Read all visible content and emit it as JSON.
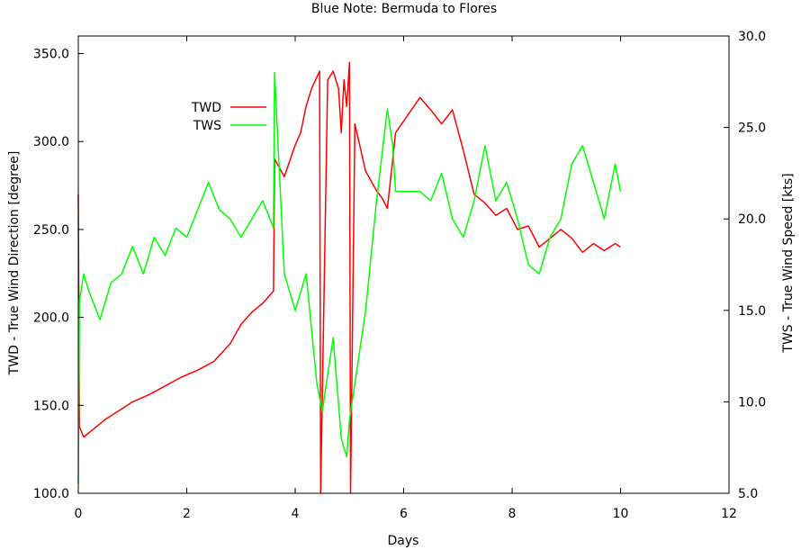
{
  "chart_data": {
    "type": "line",
    "title": "Blue Note: Bermuda to Flores",
    "xlabel": "Days",
    "ylabel_left": "TWD - True Wind Direction [degree]",
    "ylabel_right": "TWS - True Wind Speed [kts]",
    "xlim": [
      0,
      12
    ],
    "ylim_left": [
      100,
      360
    ],
    "ylim_right": [
      5,
      30
    ],
    "x_ticks": [
      "0",
      "2",
      "4",
      "6",
      "8",
      "10",
      "12"
    ],
    "y_ticks_left": [
      "100.0",
      "150.0",
      "200.0",
      "250.0",
      "300.0",
      "350.0"
    ],
    "y_ticks_right": [
      "5.0",
      "10.0",
      "15.0",
      "20.0",
      "25.0",
      "30.0"
    ],
    "legend_position": "top-left",
    "grid": false,
    "series": [
      {
        "name": "TWD",
        "axis": "left",
        "color": "#ff0000",
        "x": [
          0,
          0.02,
          0.1,
          0.3,
          0.5,
          0.8,
          1.0,
          1.3,
          1.6,
          1.9,
          2.2,
          2.5,
          2.8,
          3.0,
          3.2,
          3.4,
          3.6,
          3.62,
          3.8,
          4.0,
          4.1,
          4.2,
          4.3,
          4.45,
          4.47,
          4.6,
          4.7,
          4.8,
          4.85,
          4.9,
          4.95,
          5.0,
          5.02,
          5.1,
          5.3,
          5.5,
          5.6,
          5.7,
          5.8,
          5.85,
          6.3,
          6.5,
          6.7,
          6.9,
          7.1,
          7.3,
          7.5,
          7.7,
          7.9,
          8.1,
          8.3,
          8.5,
          8.7,
          8.9,
          9.1,
          9.3,
          9.5,
          9.7,
          9.9,
          10.0
        ],
        "values": [
          270,
          138,
          132,
          137,
          142,
          148,
          152,
          156,
          161,
          166,
          170,
          175,
          185,
          196,
          203,
          208,
          215,
          290,
          280,
          298,
          305,
          320,
          330,
          340,
          100,
          335,
          340,
          330,
          305,
          335,
          320,
          345,
          100,
          310,
          283,
          272,
          268,
          262,
          290,
          305,
          325,
          318,
          310,
          318,
          295,
          270,
          265,
          258,
          262,
          250,
          252,
          240,
          245,
          250,
          245,
          237,
          242,
          238,
          242,
          240
        ]
      },
      {
        "name": "TWS",
        "axis": "right",
        "color": "#00ff00",
        "x": [
          0,
          0.02,
          0.1,
          0.2,
          0.4,
          0.6,
          0.8,
          1.0,
          1.2,
          1.4,
          1.6,
          1.8,
          2.0,
          2.2,
          2.4,
          2.6,
          2.8,
          3.0,
          3.2,
          3.4,
          3.6,
          3.62,
          3.8,
          4.0,
          4.2,
          4.4,
          4.5,
          4.7,
          4.85,
          4.95,
          5.0,
          5.1,
          5.3,
          5.5,
          5.7,
          5.8,
          5.85,
          6.3,
          6.5,
          6.7,
          6.9,
          7.1,
          7.3,
          7.5,
          7.7,
          7.9,
          8.1,
          8.3,
          8.5,
          8.7,
          8.9,
          9.1,
          9.3,
          9.5,
          9.7,
          9.9,
          10.0
        ],
        "values": [
          5.5,
          15.5,
          17,
          16,
          14.5,
          16.5,
          17,
          18.5,
          17,
          19,
          18,
          19.5,
          19,
          20.5,
          22,
          20.5,
          20,
          19,
          20,
          21,
          19.5,
          28,
          17,
          15,
          17,
          11,
          9.5,
          13.5,
          8,
          7,
          9,
          11,
          15,
          21,
          26,
          24,
          21.5,
          21.5,
          21,
          22.5,
          20,
          19,
          21,
          24,
          21,
          22,
          20,
          17.5,
          17,
          19,
          20,
          23,
          24,
          22,
          20,
          23,
          21.5
        ]
      }
    ]
  }
}
